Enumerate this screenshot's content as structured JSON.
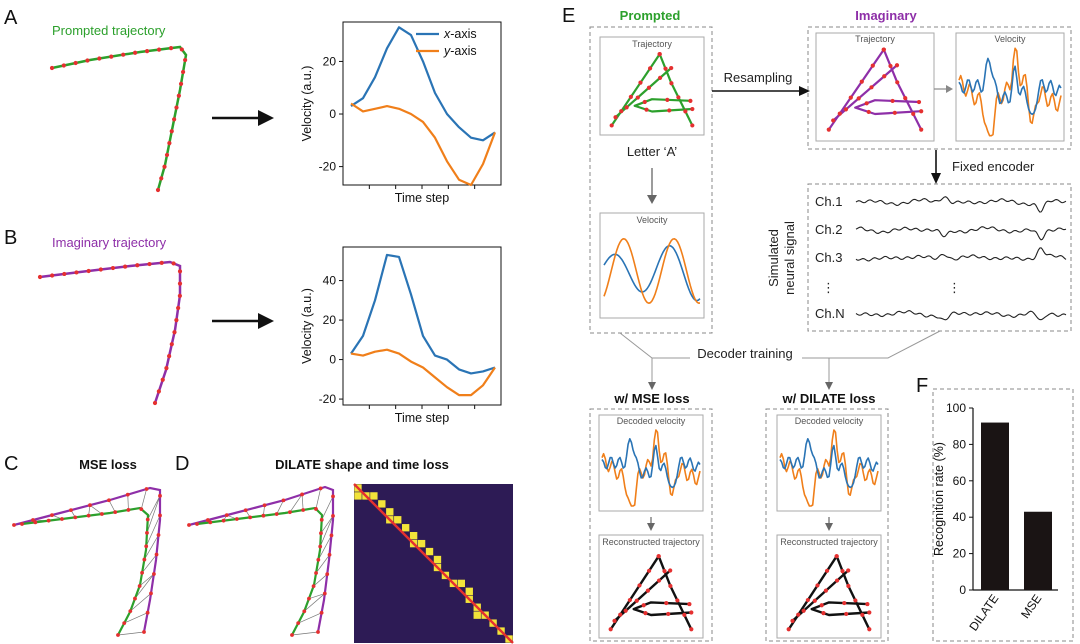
{
  "labels": {
    "panel_a": "A",
    "panel_b": "B",
    "panel_c": "C",
    "panel_d": "D",
    "panel_e": "E",
    "panel_f": "F",
    "prompted_trajectory": "Prompted trajectory",
    "imaginary_trajectory": "Imaginary trajectory",
    "mse_loss": "MSE loss",
    "dilate_shape_time_loss": "DILATE shape and time loss",
    "prompted": "Prompted",
    "imaginary": "Imaginary",
    "trajectory": "Trajectory",
    "velocity": "Velocity",
    "letter_a": "Letter ‘A’",
    "resampling": "Resampling",
    "fixed_encoder": "Fixed encoder",
    "simulated_signal_1": "Simulated",
    "simulated_signal_2": "neural signal",
    "decoder_training": "Decoder training",
    "w_mse_loss": "w/ MSE loss",
    "w_dilate_loss": "w/ DILATE loss",
    "decoded_velocity": "Decoded velocity",
    "reconstructed_trajectory": "Reconstructed trajectory",
    "channels": [
      "Ch.1",
      "Ch.2",
      "Ch.3",
      "⋮",
      "Ch.N"
    ],
    "dots": "⋮"
  },
  "colors": {
    "green": "#2ca02c",
    "purple": "#8e2fa8",
    "red": "#e53030",
    "blue": "#2a74b5",
    "orange": "#f07f1a",
    "bar": "#1a1414",
    "heat_bg": "#2d1b55",
    "heat_cell": "#f2e43a"
  },
  "chart_data": [
    {
      "id": "A",
      "type": "line",
      "xlabel": "Time step",
      "ylabel": "Velocity (a.u.)",
      "ylim": [
        -27,
        35
      ],
      "yticks": [
        -20,
        0,
        20
      ],
      "legend": [
        "x-axis",
        "y-axis"
      ],
      "series": [
        {
          "name": "x-axis",
          "values": [
            3,
            6,
            14,
            25,
            33,
            30,
            20,
            8,
            0,
            -5,
            -9,
            -10,
            -7
          ]
        },
        {
          "name": "y-axis",
          "values": [
            4,
            1,
            2,
            3,
            2,
            0,
            -3,
            -9,
            -18,
            -25,
            -27,
            -19,
            -7
          ]
        }
      ]
    },
    {
      "id": "B",
      "type": "line",
      "xlabel": "Time step",
      "ylabel": "Velocity (a.u.)",
      "ylim": [
        -23,
        57
      ],
      "yticks": [
        -20,
        0,
        20,
        40
      ],
      "series": [
        {
          "name": "x-axis",
          "values": [
            3,
            12,
            30,
            53,
            52,
            33,
            12,
            2,
            0,
            -5,
            -7,
            -6,
            -4
          ]
        },
        {
          "name": "y-axis",
          "values": [
            3,
            2,
            4,
            5,
            3,
            -1,
            -4,
            -9,
            -14,
            -18,
            -18,
            -13,
            -4
          ]
        }
      ]
    },
    {
      "id": "F",
      "type": "bar",
      "categories": [
        "DILATE",
        "MSE"
      ],
      "values": [
        92,
        43
      ],
      "ylabel": "Recognition rate (%)",
      "ylim": [
        0,
        100
      ],
      "yticks": [
        0,
        20,
        40,
        60,
        80,
        100
      ]
    }
  ]
}
